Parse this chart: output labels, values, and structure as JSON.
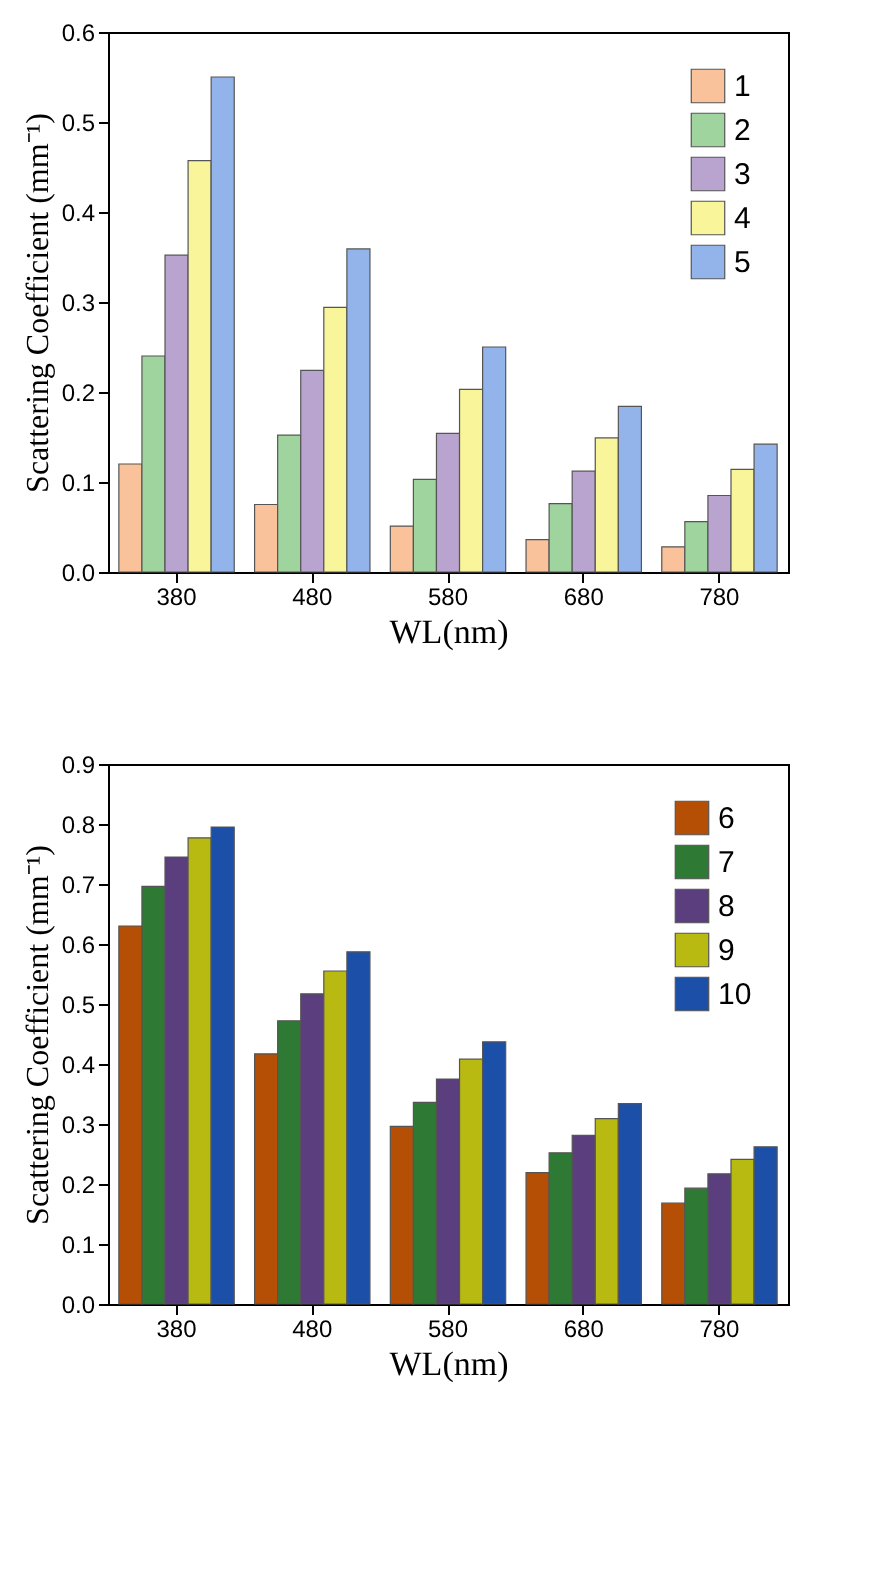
{
  "chart_data": [
    {
      "type": "bar",
      "xlabel": "WL(nm)",
      "ylabel": "Scattering Coefficient (mm⁻¹)",
      "categories": [
        "380",
        "480",
        "580",
        "680",
        "780"
      ],
      "ylim": [
        0,
        0.6
      ],
      "yticks": [
        {
          "value": 0,
          "label": "0.0"
        },
        0.1,
        0.2,
        0.3,
        0.4,
        0.5,
        0.6
      ],
      "grid": false,
      "legend": "top right",
      "series": [
        {
          "name": "1",
          "color": "#f9c29a",
          "values": [
            0.12,
            0.075,
            0.051,
            0.036,
            0.028
          ]
        },
        {
          "name": "2",
          "color": "#9fd49f",
          "values": [
            0.24,
            0.152,
            0.103,
            0.076,
            0.056
          ]
        },
        {
          "name": "3",
          "color": "#b9a4cf",
          "values": [
            0.352,
            0.224,
            0.154,
            0.112,
            0.085
          ]
        },
        {
          "name": "4",
          "color": "#f8f59a",
          "values": [
            0.457,
            0.294,
            0.203,
            0.149,
            0.114
          ]
        },
        {
          "name": "5",
          "color": "#92b4ea",
          "values": [
            0.55,
            0.359,
            0.25,
            0.184,
            0.142
          ]
        }
      ]
    },
    {
      "type": "bar",
      "xlabel": "WL(nm)",
      "ylabel": "Scattering Coefficient (mm⁻¹)",
      "categories": [
        "380",
        "480",
        "580",
        "680",
        "780"
      ],
      "ylim": [
        0,
        0.9
      ],
      "yticks": [
        {
          "value": 0,
          "label": "0.0"
        },
        0.1,
        0.2,
        0.3,
        0.4,
        0.5,
        0.6,
        0.7,
        0.8,
        0.9
      ],
      "grid": false,
      "legend": "top right",
      "series": [
        {
          "name": "6",
          "color": "#b54f06",
          "values": [
            0.63,
            0.417,
            0.296,
            0.219,
            0.168
          ]
        },
        {
          "name": "7",
          "color": "#2e7a35",
          "values": [
            0.696,
            0.472,
            0.336,
            0.252,
            0.193
          ]
        },
        {
          "name": "8",
          "color": "#5b3e7e",
          "values": [
            0.745,
            0.517,
            0.375,
            0.281,
            0.217
          ]
        },
        {
          "name": "9",
          "color": "#b8ba12",
          "values": [
            0.777,
            0.555,
            0.408,
            0.309,
            0.241
          ]
        },
        {
          "name": "10",
          "color": "#1c4fa8",
          "values": [
            0.795,
            0.587,
            0.437,
            0.334,
            0.262
          ]
        }
      ]
    }
  ]
}
